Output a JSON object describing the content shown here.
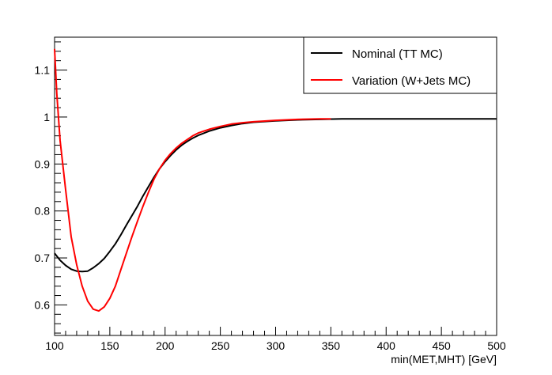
{
  "chart_data": {
    "type": "line",
    "title": "",
    "xlabel": "min(MET,MHT) [GeV]",
    "ylabel": "",
    "xlim": [
      100,
      500
    ],
    "ylim": [
      0.535,
      1.17
    ],
    "x_ticks": [
      {
        "value": 100,
        "label": "100"
      },
      {
        "value": 150,
        "label": "150"
      },
      {
        "value": 200,
        "label": "200"
      },
      {
        "value": 250,
        "label": "250"
      },
      {
        "value": 300,
        "label": "300"
      },
      {
        "value": 350,
        "label": "350"
      },
      {
        "value": 400,
        "label": "400"
      },
      {
        "value": 450,
        "label": "450"
      },
      {
        "value": 500,
        "label": "500"
      }
    ],
    "y_ticks": [
      {
        "value": 0.6,
        "label": "0.6"
      },
      {
        "value": 0.7,
        "label": "0.7"
      },
      {
        "value": 0.8,
        "label": "0.8"
      },
      {
        "value": 0.9,
        "label": "0.9"
      },
      {
        "value": 1.0,
        "label": "1"
      },
      {
        "value": 1.1,
        "label": "1.1"
      }
    ],
    "grid": false,
    "legend_position": "top-right",
    "series": [
      {
        "name": "Nominal (TT MC)",
        "color": "#000000",
        "x": [
          100,
          105,
          110,
          115,
          120,
          125,
          130,
          135,
          140,
          145,
          150,
          155,
          160,
          165,
          170,
          175,
          180,
          185,
          190,
          195,
          200,
          205,
          210,
          215,
          220,
          225,
          230,
          240,
          250,
          260,
          270,
          280,
          300,
          320,
          340,
          360,
          400,
          450,
          500
        ],
        "y": [
          0.71,
          0.695,
          0.684,
          0.676,
          0.672,
          0.671,
          0.672,
          0.679,
          0.688,
          0.699,
          0.714,
          0.73,
          0.749,
          0.77,
          0.79,
          0.81,
          0.832,
          0.852,
          0.872,
          0.89,
          0.905,
          0.918,
          0.93,
          0.94,
          0.948,
          0.955,
          0.961,
          0.97,
          0.977,
          0.982,
          0.986,
          0.989,
          0.992,
          0.994,
          0.995,
          0.996,
          0.996,
          0.996,
          0.996
        ]
      },
      {
        "name": "Variation (W+Jets MC)",
        "color": "#ff0000",
        "x": [
          100,
          102,
          105,
          110,
          115,
          120,
          125,
          130,
          135,
          140,
          145,
          150,
          155,
          160,
          165,
          170,
          175,
          180,
          185,
          190,
          195,
          200,
          205,
          210,
          215,
          220,
          225,
          230,
          240,
          250,
          260,
          270,
          280,
          300,
          320,
          340,
          350
        ],
        "y": [
          1.145,
          1.05,
          0.95,
          0.845,
          0.745,
          0.685,
          0.64,
          0.608,
          0.591,
          0.587,
          0.596,
          0.614,
          0.64,
          0.675,
          0.71,
          0.745,
          0.778,
          0.81,
          0.84,
          0.868,
          0.89,
          0.908,
          0.922,
          0.934,
          0.944,
          0.952,
          0.96,
          0.966,
          0.974,
          0.98,
          0.985,
          0.988,
          0.99,
          0.993,
          0.995,
          0.996,
          0.996
        ]
      }
    ]
  }
}
